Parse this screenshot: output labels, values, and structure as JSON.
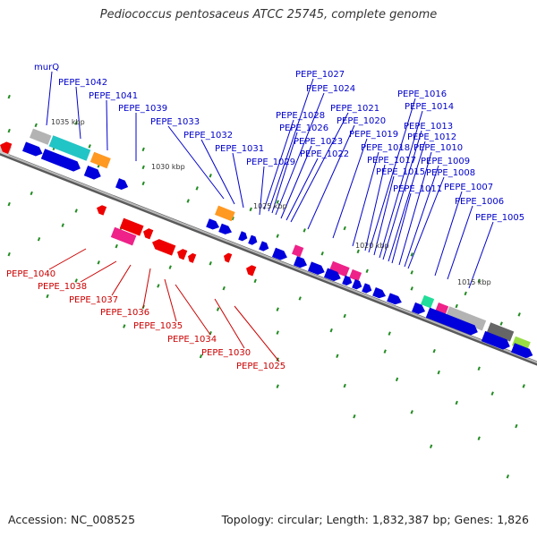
{
  "title": "Pediococcus pentosaceus ATCC 25745, complete genome",
  "accession": "Accession: NC_008525",
  "summary": "Topology: circular; Length: 1,832,387 bp; Genes: 1,826",
  "colors": {
    "forward_label": "#0000cc",
    "reverse_label": "#cc0000",
    "forward_gene": "#0000dd",
    "reverse_gene": "#ee0000",
    "backbone": "#8a8a8a",
    "tick": "#228b22"
  },
  "scale_labels": [
    "1035 kbp",
    "1030 kbp",
    "1025 kbp",
    "1020 kbp",
    "1015 kbp"
  ],
  "forward_labels": [
    "murQ",
    "PEPE_1042",
    "PEPE_1041",
    "PEPE_1039",
    "PEPE_1033",
    "PEPE_1032",
    "PEPE_1031",
    "PEPE_1029",
    "PEPE_1028",
    "PEPE_1027",
    "PEPE_1026",
    "PEPE_1024",
    "PEPE_1023",
    "PEPE_1022",
    "PEPE_1021",
    "PEPE_1020",
    "PEPE_1019",
    "PEPE_1018",
    "PEPE_1017",
    "PEPE_1016",
    "PEPE_1015",
    "PEPE_1014",
    "PEPE_1013",
    "PEPE_1012",
    "PEPE_1011",
    "PEPE_1010",
    "PEPE_1009",
    "PEPE_1008",
    "PEPE_1007",
    "PEPE_1006",
    "PEPE_1005"
  ],
  "reverse_labels": [
    "PEPE_1040",
    "PEPE_1038",
    "PEPE_1037",
    "PEPE_1036",
    "PEPE_1035",
    "PEPE_1034",
    "PEPE_1030",
    "PEPE_1025"
  ]
}
